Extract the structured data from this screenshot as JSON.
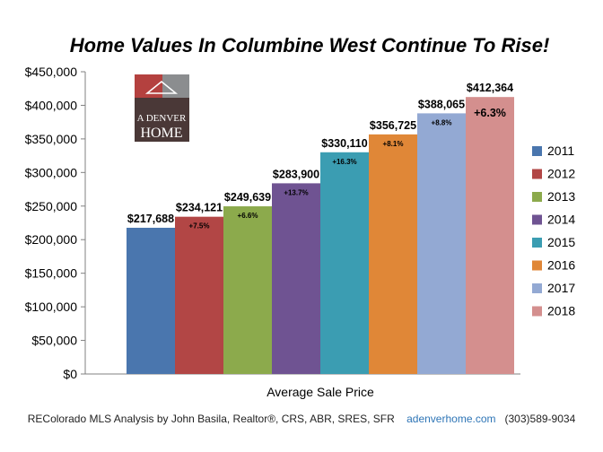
{
  "chart_data": {
    "type": "bar",
    "title": "Home Values In Columbine West Continue To Rise!",
    "xlabel": "Average Sale Price",
    "ylabel": "",
    "ylim": [
      0,
      450000
    ],
    "yticks": [
      0,
      50000,
      100000,
      150000,
      200000,
      250000,
      300000,
      350000,
      400000,
      450000
    ],
    "ytick_labels": [
      "$0",
      "$50,000",
      "$100,000",
      "$150,000",
      "$200,000",
      "$250,000",
      "$300,000",
      "$350,000",
      "$400,000",
      "$450,000"
    ],
    "grid": false,
    "legend_position": "right",
    "series": [
      {
        "name": "2011",
        "value": 217688,
        "label": "$217,688",
        "change": "",
        "color": "#4a76ae"
      },
      {
        "name": "2012",
        "value": 234121,
        "label": "$234,121",
        "change": "+7.5%",
        "color": "#b24645"
      },
      {
        "name": "2013",
        "value": 249639,
        "label": "$249,639",
        "change": "+6.6%",
        "color": "#8caa4c"
      },
      {
        "name": "2014",
        "value": 283900,
        "label": "$283,900",
        "change": "+13.7%",
        "color": "#6f5392"
      },
      {
        "name": "2015",
        "value": 330110,
        "label": "$330,110",
        "change": "+16.3%",
        "color": "#3b9db2"
      },
      {
        "name": "2016",
        "value": 356725,
        "label": "$356,725",
        "change": "+8.1%",
        "color": "#e08737"
      },
      {
        "name": "2017",
        "value": 388065,
        "label": "$388,065",
        "change": "+8.8%",
        "color": "#93a9d3"
      },
      {
        "name": "2018",
        "value": 412364,
        "label": "$412,364",
        "change": "+6.3%",
        "color": "#d48f8e"
      }
    ]
  },
  "logo": {
    "line1": "A DENVER",
    "line2": "HOME",
    "colors": [
      "#b4413f",
      "#8b8d8f",
      "#4a3837"
    ]
  },
  "footer": {
    "analysis": "REColorado MLS  Analysis by John Basila, Realtor®, CRS, ABR, SRES, SFR",
    "site": "adenverhome.com",
    "phone": "(303)589-9034"
  }
}
